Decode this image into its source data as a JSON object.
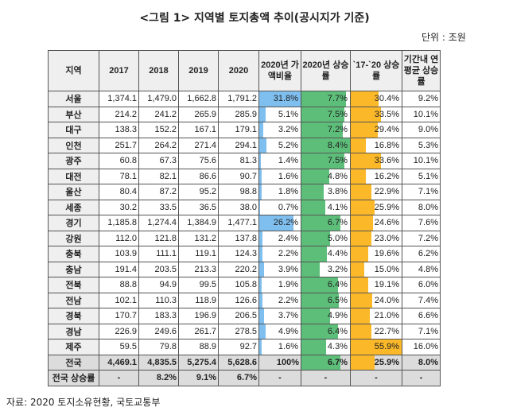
{
  "title": "<그림 1> 지역별 토지총액 추이(공시지가 기준)",
  "unit": "단위 : 조원",
  "colors": {
    "share_bar": "#7fbfef",
    "rise_bar": "#5dbe7a",
    "period_bar": "#fbb829",
    "header_bg": "#efefef"
  },
  "headers": [
    "지역",
    "2017",
    "2018",
    "2019",
    "2020",
    "2020년 가액비율",
    "2020년 상승률",
    "`17-`20 상승률",
    "기간내 연평균 상승률"
  ],
  "rows": [
    [
      "서울",
      "1,374.1",
      "1,479.0",
      "1,662.8",
      "1,791.2",
      "31.8%",
      "7.7%",
      "30.4%",
      "9.2%"
    ],
    [
      "부산",
      "214.2",
      "241.2",
      "265.9",
      "285.9",
      "5.1%",
      "7.5%",
      "33.5%",
      "10.1%"
    ],
    [
      "대구",
      "138.3",
      "152.2",
      "167.1",
      "179.1",
      "3.2%",
      "7.2%",
      "29.4%",
      "9.0%"
    ],
    [
      "인천",
      "251.7",
      "264.2",
      "271.4",
      "294.1",
      "5.2%",
      "8.4%",
      "16.8%",
      "5.3%"
    ],
    [
      "광주",
      "60.8",
      "67.3",
      "75.6",
      "81.3",
      "1.4%",
      "7.5%",
      "33.6%",
      "10.1%"
    ],
    [
      "대전",
      "78.1",
      "82.1",
      "86.6",
      "90.7",
      "1.6%",
      "4.8%",
      "16.2%",
      "5.1%"
    ],
    [
      "울산",
      "80.4",
      "87.2",
      "95.2",
      "98.8",
      "1.8%",
      "3.8%",
      "22.9%",
      "7.1%"
    ],
    [
      "세종",
      "30.2",
      "33.5",
      "36.5",
      "38.0",
      "0.7%",
      "4.1%",
      "25.9%",
      "8.0%"
    ],
    [
      "경기",
      "1,185.8",
      "1,274.4",
      "1,384.9",
      "1,477.1",
      "26.2%",
      "6.7%",
      "24.6%",
      "7.6%"
    ],
    [
      "강원",
      "112.0",
      "121.8",
      "131.2",
      "137.8",
      "2.4%",
      "5.0%",
      "23.0%",
      "7.2%"
    ],
    [
      "충북",
      "103.9",
      "111.1",
      "119.1",
      "124.3",
      "2.2%",
      "4.4%",
      "19.6%",
      "6.2%"
    ],
    [
      "충남",
      "191.4",
      "203.5",
      "213.3",
      "220.2",
      "3.9%",
      "3.2%",
      "15.0%",
      "4.8%"
    ],
    [
      "전북",
      "88.8",
      "94.9",
      "99.5",
      "105.8",
      "1.9%",
      "6.4%",
      "19.1%",
      "6.0%"
    ],
    [
      "전남",
      "102.1",
      "110.3",
      "118.9",
      "126.6",
      "2.2%",
      "6.5%",
      "24.0%",
      "7.4%"
    ],
    [
      "경북",
      "170.7",
      "183.3",
      "196.9",
      "206.5",
      "3.7%",
      "4.9%",
      "21.0%",
      "6.6%"
    ],
    [
      "경남",
      "226.9",
      "249.6",
      "261.7",
      "278.5",
      "4.9%",
      "6.4%",
      "22.7%",
      "7.1%"
    ],
    [
      "제주",
      "59.5",
      "79.8",
      "88.9",
      "92.7",
      "1.6%",
      "4.3%",
      "55.9%",
      "16.0%"
    ]
  ],
  "total": [
    "전국",
    "4,469.1",
    "4,835.5",
    "5,275.4",
    "5,628.6",
    "100%",
    "6.7%",
    "25.9%",
    "8.0%"
  ],
  "national_rise": [
    "전국 상승률",
    "-",
    "8.2%",
    "9.1%",
    "6.7%",
    "-",
    "-",
    "-",
    "-"
  ],
  "source": "자료: 2020 토지소유현황, 국토교통부"
}
